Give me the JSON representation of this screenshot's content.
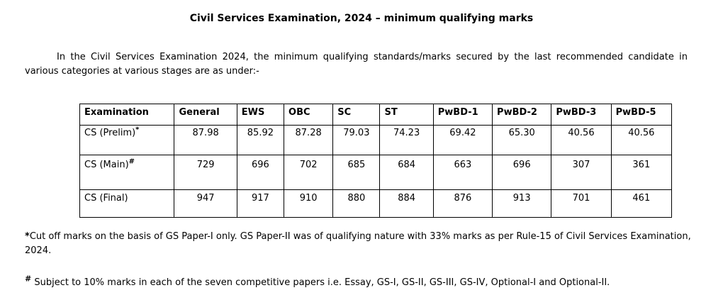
{
  "title": "Civil Services Examination, 2024 – minimum qualifying marks",
  "intro": "In the Civil Services Examination 2024, the minimum qualifying standards/marks secured by the last recommended candidate in various categories at various stages are as under:-",
  "table": {
    "headers": [
      "Examination",
      "General",
      "EWS",
      "OBC",
      "SC",
      "ST",
      "PwBD-1",
      "PwBD-2",
      "PwBD-3",
      "PwBD-5"
    ],
    "rows": [
      {
        "label": "CS (Prelim)",
        "mark": "*",
        "values": [
          "87.98",
          "85.92",
          "87.28",
          "79.03",
          "74.23",
          "69.42",
          "65.30",
          "40.56",
          "40.56"
        ]
      },
      {
        "label": "CS (Main)",
        "mark": "#",
        "values": [
          "729",
          "696",
          "702",
          "685",
          "684",
          "663",
          "696",
          "307",
          "361"
        ]
      },
      {
        "label": "CS (Final)",
        "mark": "",
        "values": [
          "947",
          "917",
          "910",
          "880",
          "884",
          "876",
          "913",
          "701",
          "461"
        ]
      }
    ]
  },
  "notes": {
    "note1_symbol": "*",
    "note1_text": "Cut off marks on the basis of GS Paper-I only.  GS Paper-II was of qualifying nature with 33% marks as per Rule-15 of Civil Services Examination, 2024.",
    "note2_symbol": "#",
    "note2_text": " Subject to 10% marks in each of the seven competitive papers i.e. Essay, GS-I, GS-II, GS-III, GS-IV, Optional-I and Optional-II."
  }
}
